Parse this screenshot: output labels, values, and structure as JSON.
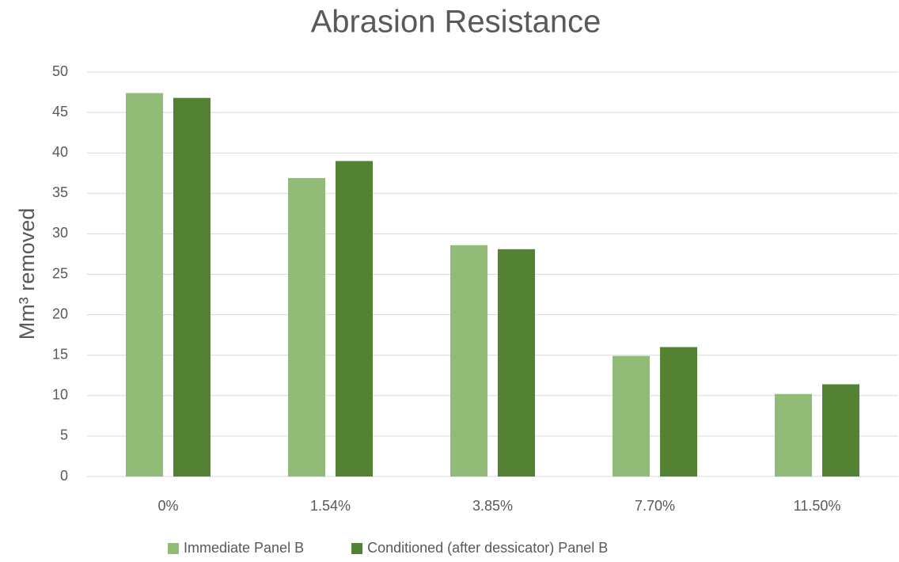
{
  "chart_data": {
    "type": "bar",
    "title": "Abrasion Resistance",
    "y_label": "Mm³ removed",
    "categories": [
      "0%",
      "1.54%",
      "3.85%",
      "7.70%",
      "11.50%"
    ],
    "series": [
      {
        "name": "Immediate Panel B",
        "color": "#93bb78",
        "values": [
          47.4,
          36.9,
          28.6,
          14.9,
          10.2
        ]
      },
      {
        "name": "Conditioned (after dessicator) Panel B",
        "color": "#548235",
        "values": [
          46.8,
          39.0,
          28.1,
          16.0,
          11.4
        ]
      }
    ],
    "ylim": [
      0,
      50
    ],
    "yticks": [
      0,
      5,
      10,
      15,
      20,
      25,
      30,
      35,
      40,
      45,
      50
    ],
    "grid": true,
    "legend": "bottom"
  }
}
